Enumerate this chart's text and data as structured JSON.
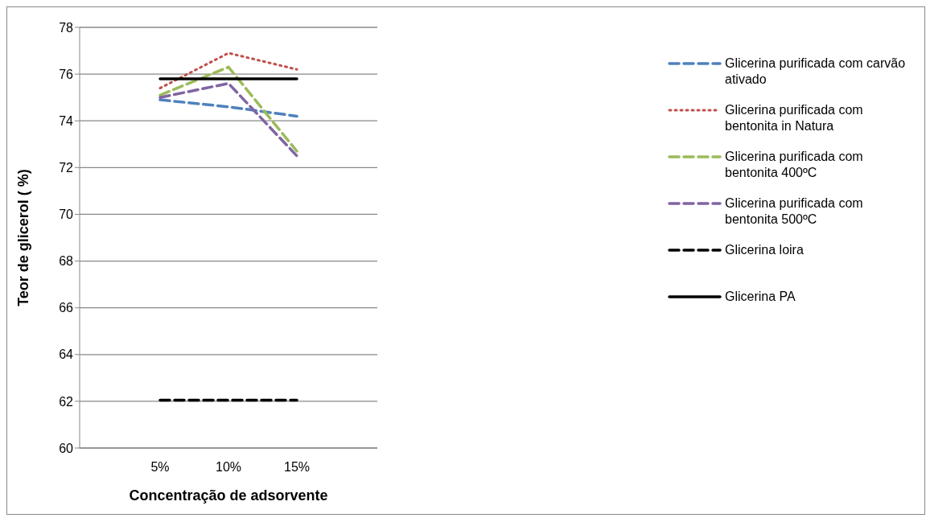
{
  "chart_data": {
    "type": "line",
    "xlabel": "Concentração de adsorvente",
    "ylabel": "Teor de glicerol ( %)",
    "categories": [
      "5%",
      "10%",
      "15%"
    ],
    "series": [
      {
        "name": "Glicerina purificada com carvão ativado",
        "color": "#4f81bd",
        "line_style": "dashed",
        "values": [
          74.9,
          74.6,
          74.2
        ]
      },
      {
        "name": "Glicerina purificada com bentonita in Natura",
        "color": "#c0504d",
        "line_style": "dotted",
        "values": [
          75.4,
          76.9,
          76.2
        ]
      },
      {
        "name": "Glicerina purificada com bentonita 400ºC",
        "color": "#9bbb59",
        "line_style": "dashed",
        "values": [
          75.1,
          76.3,
          72.7
        ]
      },
      {
        "name": "Glicerina purificada com bentonita 500ºC",
        "color": "#8064a2",
        "line_style": "dashed",
        "values": [
          75.0,
          75.6,
          72.5
        ]
      },
      {
        "name": "Glicerina loira",
        "color": "#000000",
        "line_style": "dashed",
        "values": [
          62.05,
          62.05,
          62.05
        ]
      },
      {
        "name": "Glicerina PA",
        "color": "#000000",
        "line_style": "solid",
        "values": [
          75.8,
          75.8,
          75.8
        ]
      }
    ],
    "ylim": [
      60,
      78
    ],
    "yticks": [
      60,
      62,
      64,
      66,
      68,
      70,
      72,
      74,
      76,
      78
    ],
    "grid": "y",
    "legend": "right",
    "marker": "none"
  }
}
